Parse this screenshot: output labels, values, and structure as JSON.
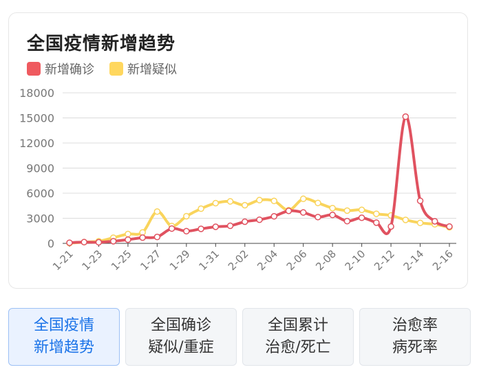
{
  "chart_data": {
    "type": "line",
    "title": "全国疫情新增趋势",
    "categories": [
      "1-21",
      "1-22",
      "1-23",
      "1-24",
      "1-25",
      "1-26",
      "1-27",
      "1-28",
      "1-29",
      "1-30",
      "1-31",
      "2-01",
      "2-02",
      "2-03",
      "2-04",
      "2-05",
      "2-06",
      "2-07",
      "2-08",
      "2-09",
      "2-10",
      "2-11",
      "2-12",
      "2-13",
      "2-14",
      "2-15",
      "2-16"
    ],
    "x_tick_labels": [
      "1-21",
      "1-23",
      "1-25",
      "1-27",
      "1-29",
      "1-31",
      "2-02",
      "2-04",
      "2-06",
      "2-08",
      "2-10",
      "2-12",
      "2-14",
      "2-16"
    ],
    "y_ticks": [
      "0",
      "3000",
      "6000",
      "9000",
      "12000",
      "15000",
      "18000"
    ],
    "ylim": [
      0,
      18000
    ],
    "grid": true,
    "legend_position": "top-left",
    "series": [
      {
        "name": "新增确诊",
        "color": "#e05260",
        "values": [
          77,
          149,
          131,
          259,
          444,
          688,
          769,
          1771,
          1459,
          1737,
          1982,
          2102,
          2590,
          2829,
          3235,
          3887,
          3694,
          3143,
          3399,
          2656,
          3062,
          2478,
          2015,
          15152,
          5090,
          2641,
          2009
        ]
      },
      {
        "name": "新增疑似",
        "color": "#f9d45c",
        "values": [
          27,
          149,
          257,
          680,
          1118,
          1309,
          3806,
          2077,
          3248,
          4148,
          4812,
          5019,
          4562,
          5173,
          5072,
          3971,
          5328,
          4833,
          4214,
          3916,
          4008,
          3536,
          3342,
          2807,
          2450,
          2277,
          1918
        ]
      }
    ]
  },
  "tabs": [
    {
      "line1": "全国疫情",
      "line2": "新增趋势"
    },
    {
      "line1": "全国确诊",
      "line2": "疑似/重症"
    },
    {
      "line1": "全国累计",
      "line2": "治愈/死亡"
    },
    {
      "line1": "治愈率",
      "line2": "病死率"
    }
  ]
}
